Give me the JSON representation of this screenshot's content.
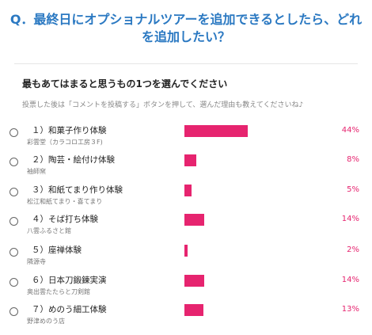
{
  "question": "Q．最終日にオプショナルツアーを追加できるとしたら、どれを追加したい？",
  "subtitle": "最もあてはまると思うもの1つを選んでください",
  "hint": "投票した後は「コメントを投稿する」ボタンを押して、選んだ理由も教えてくださいね♪",
  "colors": {
    "accent": "#2b79c2",
    "bar": "#e6246f"
  },
  "options": [
    {
      "label": "１）和菓子作り体験",
      "sub": "彩雲堂（カラコロ工房３F)",
      "percent": "44%",
      "value": 44
    },
    {
      "label": "２）陶芸・絵付け体験",
      "sub": "袖師窯",
      "percent": "8%",
      "value": 8
    },
    {
      "label": "３）和紙てまり作り体験",
      "sub": "松江和紙てまり・喜てまり",
      "percent": "5%",
      "value": 5
    },
    {
      "label": "４）そば打ち体験",
      "sub": "八雲ふるさと館",
      "percent": "14%",
      "value": 14
    },
    {
      "label": "５）座禅体験",
      "sub": "隣源寺",
      "percent": "2%",
      "value": 2
    },
    {
      "label": "６）日本刀鍛錬実演",
      "sub": "奥出雲たたらと刀剣館",
      "percent": "14%",
      "value": 14
    },
    {
      "label": "７）めのう細工体験",
      "sub": "野津めのう店",
      "percent": "13%",
      "value": 13
    }
  ]
}
